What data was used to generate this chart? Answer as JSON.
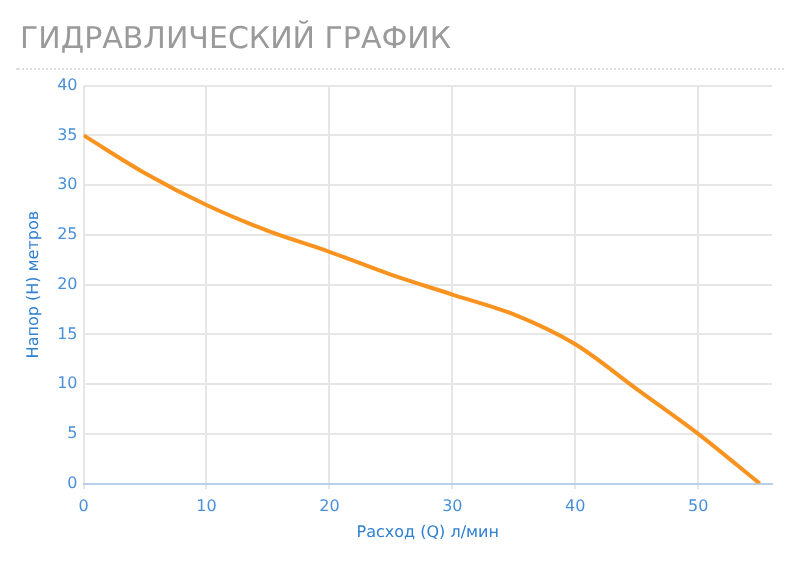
{
  "chart_data": {
    "type": "line",
    "title": "ГИДРАВЛИЧЕСКИЙ ГРАФИК",
    "xlabel": "Расход (Q) л/мин",
    "ylabel": "Напор (Н) метров",
    "x": [
      0,
      5,
      10,
      15,
      20,
      25,
      30,
      35,
      40,
      45,
      50,
      55
    ],
    "series": [
      {
        "color": "#f7931e",
        "values": [
          35,
          31.2,
          28,
          25.4,
          23.3,
          21,
          19,
          17,
          14,
          9.5,
          5,
          0
        ]
      }
    ],
    "xlim": [
      0,
      56
    ],
    "xticks": [
      0,
      10,
      20,
      30,
      40,
      50
    ],
    "ylim": [
      0,
      40
    ],
    "yticks": [
      0,
      5,
      10,
      15,
      20,
      25,
      30,
      35,
      40
    ],
    "grid": true,
    "marker": "none",
    "line_style": "solid"
  }
}
